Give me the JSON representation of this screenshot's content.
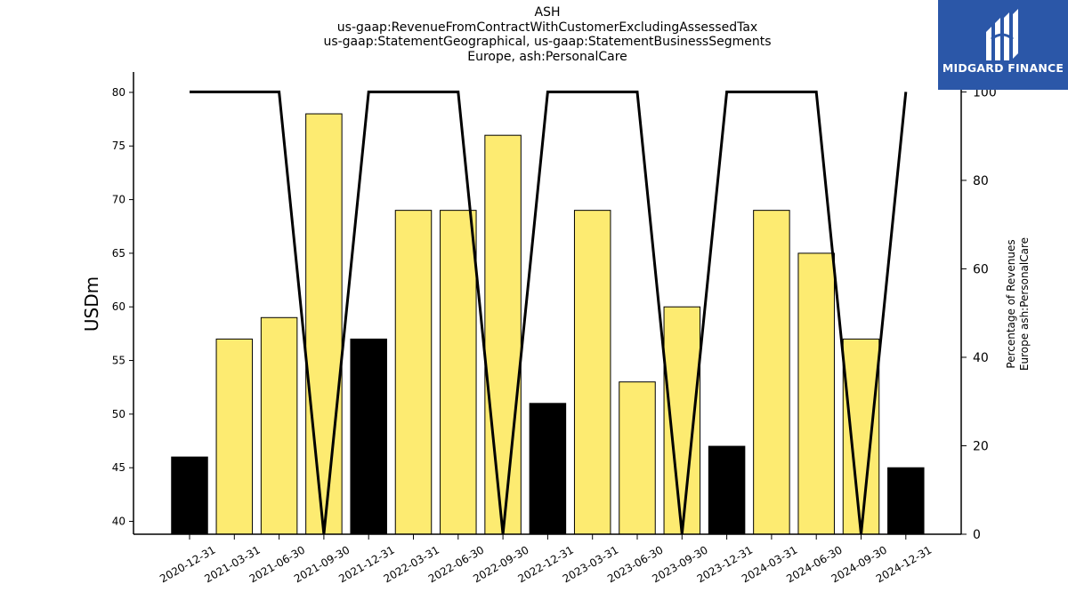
{
  "title_lines": [
    "ASH",
    "us-gaap:RevenueFromContractWithCustomerExcludingAssessedTax",
    "us-gaap:StatementGeographical, us-gaap:StatementBusinessSegments",
    "Europe, ash:PersonalCare"
  ],
  "logo": {
    "text": "MIDGARD FINANCE",
    "background": "#2b57a8"
  },
  "chart_data": {
    "type": "bar",
    "categories": [
      "2020-12-31",
      "2021-03-31",
      "2021-06-30",
      "2021-09-30",
      "2021-12-31",
      "2022-03-31",
      "2022-06-30",
      "2022-09-30",
      "2022-12-31",
      "2023-03-31",
      "2023-06-30",
      "2023-09-30",
      "2023-12-31",
      "2024-03-31",
      "2024-06-30",
      "2024-09-30",
      "2024-12-31"
    ],
    "values": [
      46,
      57,
      59,
      78,
      57,
      69,
      69,
      76,
      51,
      69,
      53,
      60,
      47,
      69,
      65,
      57,
      45
    ],
    "bar_colors": [
      "#000000",
      "#fdeb71",
      "#fdeb71",
      "#fdeb71",
      "#000000",
      "#fdeb71",
      "#fdeb71",
      "#fdeb71",
      "#000000",
      "#fdeb71",
      "#fdeb71",
      "#fdeb71",
      "#000000",
      "#fdeb71",
      "#fdeb71",
      "#fdeb71",
      "#000000"
    ],
    "ylabel": "USDm",
    "ylim": [
      38.8,
      81.9
    ],
    "yticks": [
      "40",
      "45",
      "50",
      "55",
      "60",
      "65",
      "70",
      "75",
      "80"
    ],
    "line": {
      "values": [
        100,
        100,
        100,
        0,
        100,
        100,
        100,
        0,
        100,
        100,
        100,
        0,
        100,
        100,
        100,
        0,
        100
      ],
      "color": "#000000"
    },
    "y2label_lines": [
      "Percentage of Revenues",
      "Europe ash:PersonalCare"
    ],
    "y2lim": [
      0,
      104.5
    ],
    "y2ticks": [
      "0",
      "20",
      "40",
      "60",
      "80",
      "100"
    ],
    "grid": false,
    "legend": "none"
  }
}
